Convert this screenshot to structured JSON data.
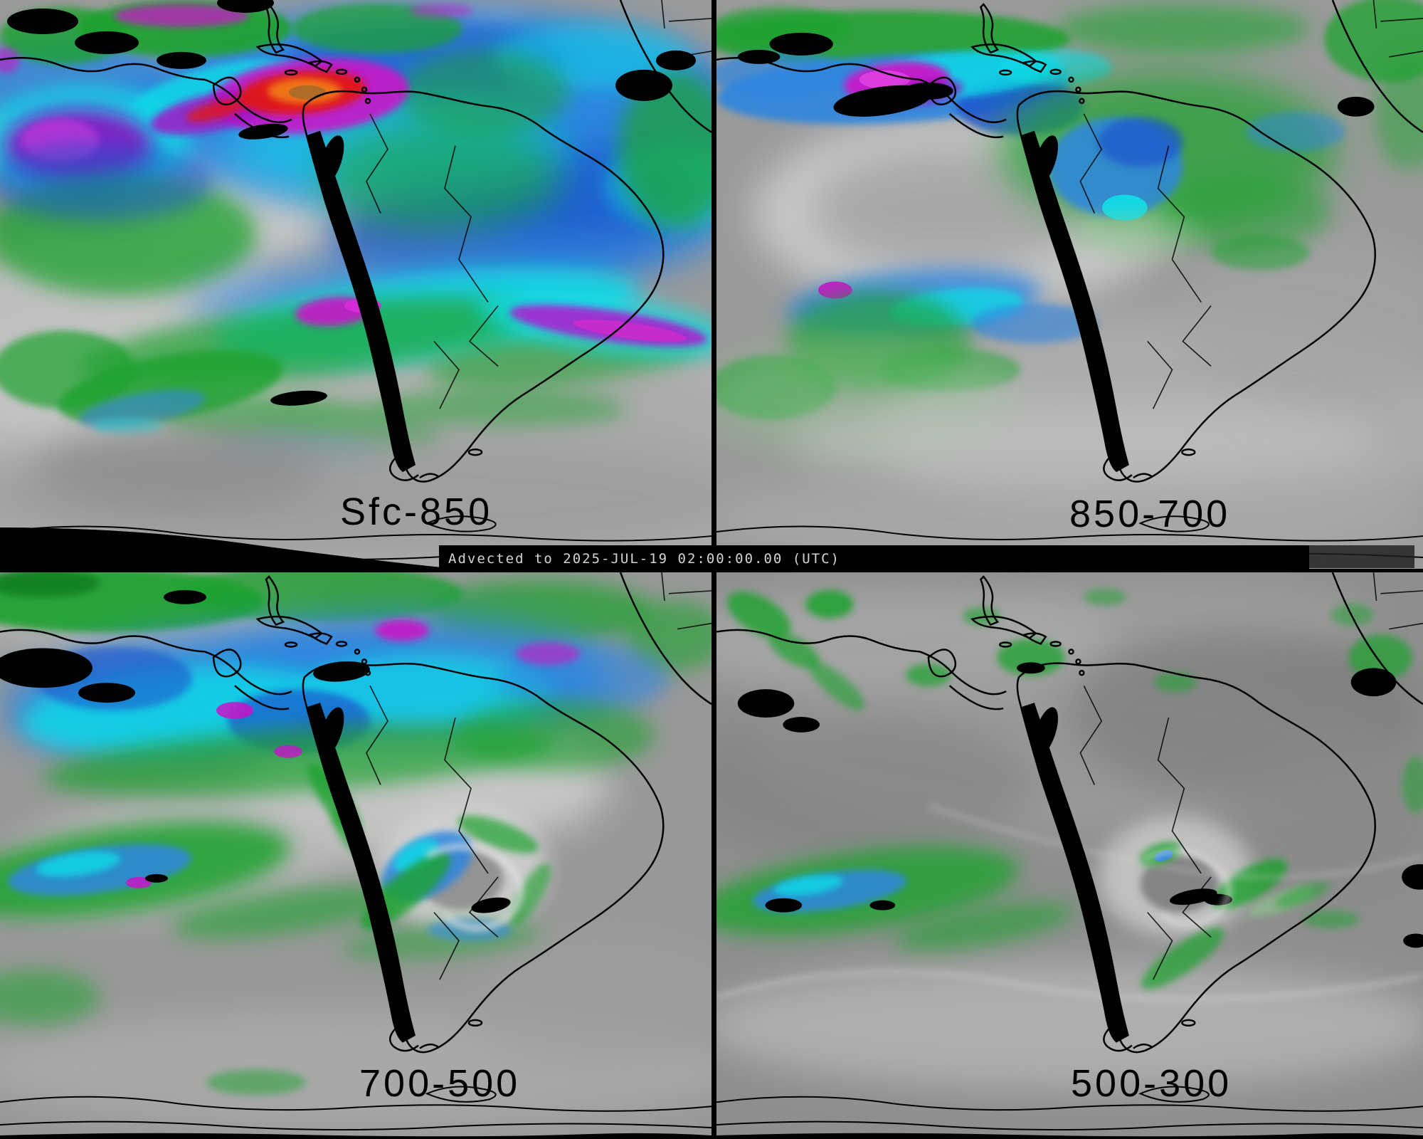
{
  "banner": {
    "text": "Advected to 2025-JUL-19 02:00:00.00 (UTC)"
  },
  "panels": [
    {
      "id": "tl",
      "label": "Sfc-850"
    },
    {
      "id": "tr",
      "label": "850-700"
    },
    {
      "id": "bl",
      "label": "700-500"
    },
    {
      "id": "br",
      "label": "500-300"
    }
  ],
  "palette": {
    "gray_base": "#969696",
    "gray_light": "#c8c8c8",
    "white": "#e8e8e8",
    "gray_dark": "#6e6e6e",
    "green": "#1ea22e",
    "green_dark": "#0e7a1e",
    "green_pale": "#8cc88c",
    "cyan": "#10dce8",
    "blue": "#2e86e0",
    "blue_deep": "#1c55cc",
    "magenta": "#c814c8",
    "purple": "#9010c0",
    "red": "#e01414",
    "orange": "#f07818",
    "orange_core": "#a86a28",
    "coastline": "#000000",
    "divider": "#000000",
    "banner_bg": "#000000",
    "banner_fg": "#d4d4d4",
    "label_color": "#000000"
  }
}
